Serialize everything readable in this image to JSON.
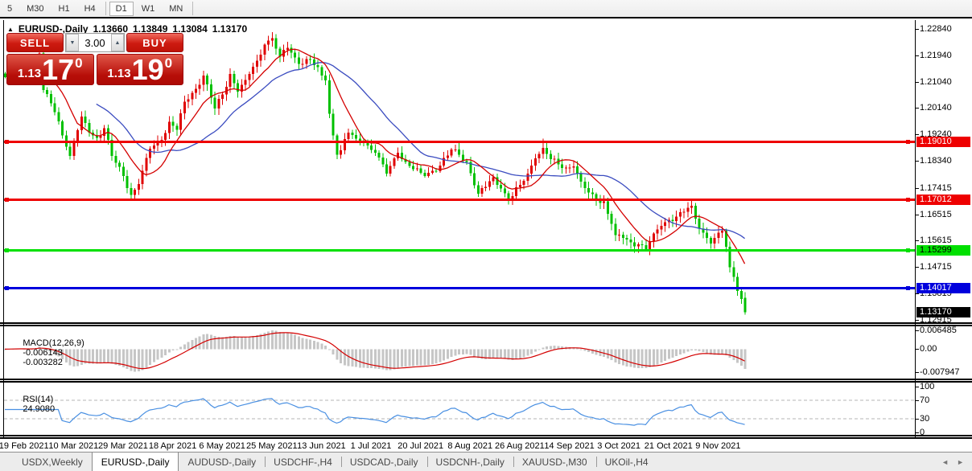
{
  "toolbar": {
    "timeframes": [
      {
        "label": "5",
        "active": false
      },
      {
        "label": "M30",
        "active": false
      },
      {
        "label": "H1",
        "active": false
      },
      {
        "label": "H4",
        "active": false
      },
      {
        "label": "D1",
        "active": true
      },
      {
        "label": "W1",
        "active": false
      },
      {
        "label": "MN",
        "active": false
      }
    ]
  },
  "header": {
    "collapse_icon": "▲",
    "symbol": "EURUSD-,Daily",
    "open": "1.13660",
    "high": "1.13849",
    "low": "1.13084",
    "close": "1.13170"
  },
  "trade_panel": {
    "sell_label": "SELL",
    "buy_label": "BUY",
    "volume": "3.00",
    "volume_down_icon": "▼",
    "volume_up_icon": "▲",
    "sell_big_figure": "1.13",
    "sell_pips": "17",
    "sell_point": "0",
    "buy_big_figure": "1.13",
    "buy_pips": "19",
    "buy_point": "0"
  },
  "price_axis": {
    "ticks": [
      {
        "label": "1.22840",
        "price": 1.2284
      },
      {
        "label": "1.21940",
        "price": 1.2194
      },
      {
        "label": "1.21040",
        "price": 1.2104
      },
      {
        "label": "1.20140",
        "price": 1.2014
      },
      {
        "label": "1.19240",
        "price": 1.1924
      },
      {
        "label": "1.18340",
        "price": 1.1834
      },
      {
        "label": "1.17415",
        "price": 1.17415
      },
      {
        "label": "1.16515",
        "price": 1.16515
      },
      {
        "label": "1.15615",
        "price": 1.15615
      },
      {
        "label": "1.14715",
        "price": 1.14715
      },
      {
        "label": "1.13815",
        "price": 1.13815
      },
      {
        "label": "1.12915",
        "price": 1.12915
      }
    ],
    "current": {
      "label": "1.13170",
      "price": 1.1317
    }
  },
  "hlines": [
    {
      "label": "1.19010",
      "price": 1.1901,
      "color": "#ee0000",
      "text_color": "#ffffff"
    },
    {
      "label": "1.17012",
      "price": 1.17012,
      "color": "#ee0000",
      "text_color": "#ffffff"
    },
    {
      "label": "1.15299",
      "price": 1.15299,
      "color": "#00e000",
      "text_color": "#000000"
    },
    {
      "label": "1.14017",
      "price": 1.14017,
      "color": "#0000dd",
      "text_color": "#ffffff"
    }
  ],
  "macd_panel": {
    "name": "MACD(12,26,9)",
    "value_main": "-0.006143",
    "value_signal": "-0.003282",
    "axis": [
      {
        "label": "0.006485",
        "value": 0.006485
      },
      {
        "label": "0.00",
        "value": 0
      },
      {
        "label": "-0.007947",
        "value": -0.007947
      }
    ]
  },
  "rsi_panel": {
    "name": "RSI(14)",
    "value": "24.9080",
    "axis": [
      {
        "label": "100",
        "value": 100
      },
      {
        "label": "70",
        "value": 70
      },
      {
        "label": "30",
        "value": 30
      },
      {
        "label": "0",
        "value": 0
      }
    ],
    "levels": [
      70,
      30
    ]
  },
  "date_axis": [
    "19 Feb 2021",
    "10 Mar 2021",
    "29 Mar 2021",
    "18 Apr 2021",
    "6 May 2021",
    "25 May 2021",
    "13 Jun 2021",
    "1 Jul 2021",
    "20 Jul 2021",
    "8 Aug 2021",
    "26 Aug 2021",
    "14 Sep 2021",
    "3 Oct 2021",
    "21 Oct 2021",
    "9 Nov 2021"
  ],
  "tabs": {
    "items": [
      {
        "label": "USDX,Weekly",
        "active": false
      },
      {
        "label": "EURUSD-,Daily",
        "active": true
      },
      {
        "label": "AUDUSD-,Daily",
        "active": false
      },
      {
        "label": "USDCHF-,H4",
        "active": false
      },
      {
        "label": "USDCAD-,Daily",
        "active": false
      },
      {
        "label": "USDCNH-,Daily",
        "active": false
      },
      {
        "label": "XAUUSD-,M30",
        "active": false
      },
      {
        "label": "UKOil-,H4",
        "active": false
      }
    ],
    "scroll_left": "◄",
    "scroll_right": "►"
  },
  "colors": {
    "bull": "#e00000",
    "bear": "#00c000",
    "ma_fast": "#d40000",
    "ma_slow": "#3b4cc0",
    "macd_hist": "#c6c6c6",
    "macd_signal": "#d40000",
    "rsi_line": "#4a90e2",
    "level_dash": "#b4b4b4",
    "current_badge_bg": "#000000",
    "current_badge_text": "#ffffff"
  },
  "chart_data": {
    "type": "candlestick",
    "symbol": "EURUSD-",
    "timeframe": "Daily",
    "count": 195,
    "ma_periods": [
      10,
      25
    ],
    "macd_params": [
      12,
      26,
      9
    ],
    "rsi_period": 14,
    "macd_axis_range": [
      0.006485,
      -0.007947
    ],
    "rsi_axis_range": [
      100,
      0
    ],
    "ylim": [
      1.12773,
      1.22938
    ],
    "last_candle": {
      "o": 1.1366,
      "h": 1.13849,
      "l": 1.13084,
      "c": 1.1317
    },
    "spikes_high": {
      "9": 1.2243,
      "141": 1.1909
    },
    "spikes_low": {
      "168": 1.1524
    },
    "waypoints": [
      [
        0,
        1.212
      ],
      [
        3,
        1.2132
      ],
      [
        5,
        1.2108
      ],
      [
        7,
        1.2135
      ],
      [
        9,
        1.22
      ],
      [
        10,
        1.2075
      ],
      [
        12,
        1.203
      ],
      [
        14,
        1.1968
      ],
      [
        17,
        1.185
      ],
      [
        20,
        1.1985
      ],
      [
        22,
        1.193
      ],
      [
        24,
        1.1912
      ],
      [
        26,
        1.1945
      ],
      [
        28,
        1.185
      ],
      [
        31,
        1.1782
      ],
      [
        33,
        1.1718
      ],
      [
        35,
        1.1755
      ],
      [
        38,
        1.1875
      ],
      [
        41,
        1.1905
      ],
      [
        43,
        1.1967
      ],
      [
        45,
        1.194
      ],
      [
        47,
        1.2035
      ],
      [
        50,
        1.208
      ],
      [
        52,
        1.2125
      ],
      [
        55,
        1.2012
      ],
      [
        57,
        1.206
      ],
      [
        59,
        1.213
      ],
      [
        61,
        1.207
      ],
      [
        63,
        1.211
      ],
      [
        66,
        1.2175
      ],
      [
        68,
        1.223
      ],
      [
        70,
        1.2252
      ],
      [
        72,
        1.219
      ],
      [
        74,
        1.222
      ],
      [
        77,
        1.2165
      ],
      [
        80,
        1.218
      ],
      [
        83,
        1.2125
      ],
      [
        84,
        1.2108
      ],
      [
        85,
        1.1995
      ],
      [
        86,
        1.192
      ],
      [
        87,
        1.1855
      ],
      [
        88,
        1.187
      ],
      [
        90,
        1.193
      ],
      [
        92,
        1.191
      ],
      [
        94,
        1.1895
      ],
      [
        97,
        1.1862
      ],
      [
        100,
        1.179
      ],
      [
        103,
        1.1862
      ],
      [
        105,
        1.183
      ],
      [
        107,
        1.1805
      ],
      [
        110,
        1.1782
      ],
      [
        112,
        1.18
      ],
      [
        114,
        1.1818
      ],
      [
        117,
        1.1872
      ],
      [
        119,
        1.1855
      ],
      [
        121,
        1.183
      ],
      [
        124,
        1.1722
      ],
      [
        126,
        1.1745
      ],
      [
        128,
        1.1778
      ],
      [
        130,
        1.174
      ],
      [
        132,
        1.1698
      ],
      [
        135,
        1.1752
      ],
      [
        137,
        1.179
      ],
      [
        139,
        1.1842
      ],
      [
        141,
        1.1878
      ],
      [
        143,
        1.184
      ],
      [
        145,
        1.1822
      ],
      [
        147,
        1.181
      ],
      [
        149,
        1.1815
      ],
      [
        151,
        1.1762
      ],
      [
        153,
        1.1725
      ],
      [
        155,
        1.17
      ],
      [
        157,
        1.1695
      ],
      [
        159,
        1.1618
      ],
      [
        160,
        1.158
      ],
      [
        162,
        1.157
      ],
      [
        164,
        1.1555
      ],
      [
        166,
        1.1548
      ],
      [
        168,
        1.1532
      ],
      [
        170,
        1.1585
      ],
      [
        172,
        1.1612
      ],
      [
        174,
        1.1632
      ],
      [
        176,
        1.1643
      ],
      [
        178,
        1.166
      ],
      [
        180,
        1.168
      ],
      [
        182,
        1.1602
      ],
      [
        184,
        1.157
      ],
      [
        185,
        1.1552
      ],
      [
        186,
        1.157
      ],
      [
        188,
        1.1595
      ],
      [
        189,
        1.154
      ],
      [
        190,
        1.147
      ],
      [
        191,
        1.1438
      ],
      [
        192,
        1.139
      ],
      [
        193,
        1.1362
      ],
      [
        194,
        1.1317
      ]
    ]
  }
}
